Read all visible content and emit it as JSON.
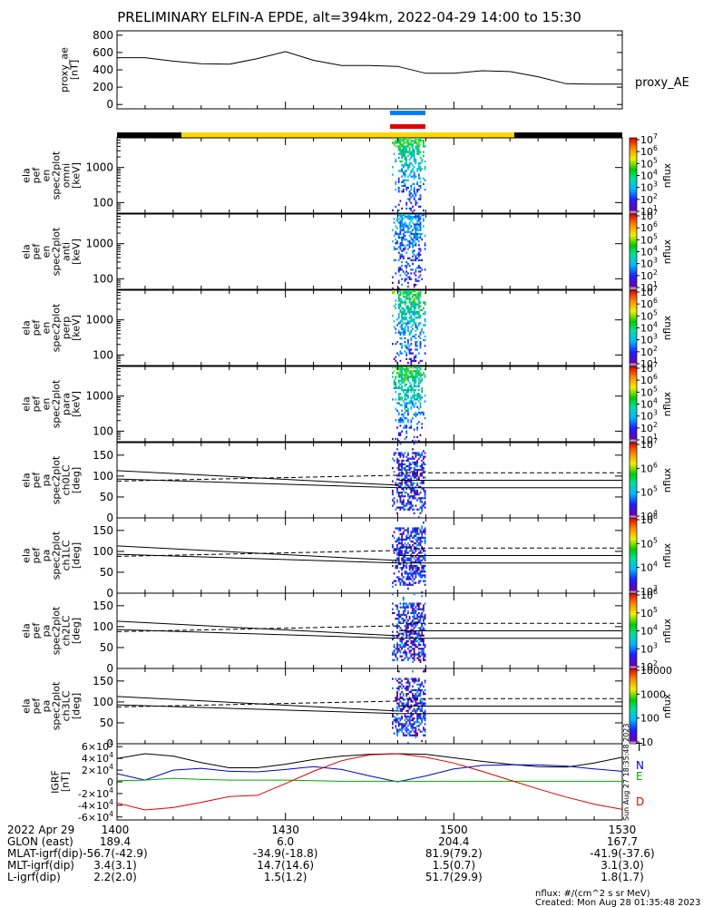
{
  "title": "PRELIMINARY ELFIN-A EPDE, alt=394km, 2022-04-29 14:00 to 15:30",
  "sidebar_stamp": "Sun Aug 27 18:35:48 2023",
  "footer": {
    "line1": "nflux: #/(cm^2 s sr MeV)",
    "line2": "Created: Mon Aug 28 01:35:48 2023"
  },
  "colors": {
    "science_bar": "#0080ff",
    "fast_bar": "#e00000",
    "mode_black": "#000000",
    "mode_yellow": "#ffd700",
    "igrf_t": "#000000",
    "igrf_n": "#0000cc",
    "igrf_e": "#00aa00",
    "igrf_d": "#dd0000"
  },
  "chart_data": [
    {
      "type": "line",
      "panel": "proxy_ae",
      "ylabel_lines": [
        "proxy_ae",
        "[nT]"
      ],
      "legend": "proxy_AE",
      "ylim": [
        -50,
        850
      ],
      "yticks": [
        "0",
        "200",
        "400",
        "600",
        "800"
      ],
      "x_minutes": [
        0,
        5,
        10,
        15,
        20,
        25,
        30,
        35,
        40,
        45,
        50,
        55,
        60,
        65,
        70,
        75,
        80,
        85,
        90
      ],
      "values": [
        540,
        540,
        500,
        470,
        465,
        530,
        610,
        510,
        450,
        450,
        440,
        360,
        360,
        390,
        380,
        320,
        240,
        235,
        235
      ]
    },
    {
      "type": "heatmap",
      "panel": "omni",
      "ylabel_lines": [
        "ela",
        "pef",
        "en",
        "spec2plot",
        "omni",
        "[keV]"
      ],
      "yscale": "log",
      "yticks": [
        "100",
        "1000"
      ],
      "colorbar_ticks": [
        "10^1",
        "10^2",
        "10^3",
        "10^4",
        "10^5",
        "10^6",
        "10^7"
      ],
      "colorbar_label": "nflux"
    },
    {
      "type": "heatmap",
      "panel": "anti",
      "ylabel_lines": [
        "ela",
        "pef",
        "en",
        "spec2plot",
        "anti",
        "[keV]"
      ],
      "yscale": "log",
      "yticks": [
        "100",
        "1000"
      ],
      "colorbar_ticks": [
        "10^1",
        "10^2",
        "10^3",
        "10^4",
        "10^5",
        "10^6",
        "10^7"
      ],
      "colorbar_label": "nflux"
    },
    {
      "type": "heatmap",
      "panel": "perp",
      "ylabel_lines": [
        "ela",
        "pef",
        "en",
        "spec2plot",
        "perp",
        "[keV]"
      ],
      "yscale": "log",
      "yticks": [
        "100",
        "1000"
      ],
      "colorbar_ticks": [
        "10^1",
        "10^2",
        "10^3",
        "10^4",
        "10^5",
        "10^6",
        "10^7"
      ],
      "colorbar_label": "nflux"
    },
    {
      "type": "heatmap",
      "panel": "para",
      "ylabel_lines": [
        "ela",
        "pef",
        "en",
        "spec2plot",
        "para",
        "[keV]"
      ],
      "yscale": "log",
      "yticks": [
        "100",
        "1000"
      ],
      "colorbar_ticks": [
        "10^1",
        "10^2",
        "10^3",
        "10^4",
        "10^5",
        "10^6",
        "10^7"
      ],
      "colorbar_label": "nflux"
    },
    {
      "type": "heatmap",
      "panel": "ch0LC",
      "ylabel_lines": [
        "ela",
        "pef",
        "pa",
        "spec2plot",
        "ch0LC",
        "[deg]"
      ],
      "ylim": [
        0,
        180
      ],
      "yticks": [
        "0",
        "50",
        "100",
        "150"
      ],
      "colorbar_ticks": [
        "10^4",
        "10^5",
        "10^6",
        "10^7"
      ],
      "colorbar_label": "nflux"
    },
    {
      "type": "heatmap",
      "panel": "ch1LC",
      "ylabel_lines": [
        "ela",
        "pef",
        "pa",
        "spec2plot",
        "ch1LC",
        "[deg]"
      ],
      "ylim": [
        0,
        180
      ],
      "yticks": [
        "0",
        "50",
        "100",
        "150"
      ],
      "colorbar_ticks": [
        "10^3",
        "10^4",
        "10^5",
        "10^6"
      ],
      "colorbar_label": "nflux"
    },
    {
      "type": "heatmap",
      "panel": "ch2LC",
      "ylabel_lines": [
        "ela",
        "pef",
        "pa",
        "spec2plot",
        "ch2LC",
        "[deg]"
      ],
      "ylim": [
        0,
        180
      ],
      "yticks": [
        "0",
        "50",
        "100",
        "150"
      ],
      "colorbar_ticks": [
        "10^2",
        "10^3",
        "10^4",
        "10^5",
        "10^6"
      ],
      "colorbar_label": "nflux"
    },
    {
      "type": "heatmap",
      "panel": "ch3LC",
      "ylabel_lines": [
        "ela",
        "pef",
        "pa",
        "spec2plot",
        "ch3LC",
        "[deg]"
      ],
      "ylim": [
        0,
        180
      ],
      "yticks": [
        "0",
        "50",
        "100",
        "150"
      ],
      "colorbar_ticks": [
        "10",
        "100",
        "1000",
        "10000"
      ],
      "colorbar_label": "nflux"
    },
    {
      "type": "line",
      "panel": "igrf",
      "ylabel_lines": [
        "IGRF",
        "[nT]"
      ],
      "ylim": [
        -65000,
        65000
      ],
      "yticks": [
        "6×10^4",
        "4×10^4",
        "2×10^4",
        "0",
        "-2×10^4",
        "-4×10^4",
        "-6×10^4"
      ],
      "x_minutes": [
        0,
        5,
        10,
        15,
        20,
        25,
        30,
        35,
        40,
        45,
        50,
        55,
        60,
        65,
        70,
        75,
        80,
        85,
        90
      ],
      "series": [
        {
          "name": "T",
          "values": [
            40000,
            48000,
            44000,
            33000,
            24000,
            24000,
            30000,
            38000,
            44000,
            47000,
            48000,
            47000,
            41000,
            35000,
            30000,
            26000,
            25000,
            32000,
            42000
          ]
        },
        {
          "name": "N",
          "values": [
            14000,
            3000,
            20000,
            23000,
            18000,
            17000,
            21000,
            26000,
            21000,
            10000,
            0,
            10000,
            22000,
            28000,
            29000,
            29000,
            27000,
            22000,
            18000
          ]
        },
        {
          "name": "E",
          "values": [
            2000,
            3000,
            6000,
            4000,
            3000,
            3000,
            3000,
            2000,
            1000,
            1000,
            1000,
            1000,
            1000,
            1000,
            1000,
            1000,
            1000,
            1000,
            1000
          ]
        },
        {
          "name": "D",
          "values": [
            -36000,
            -48000,
            -44000,
            -35000,
            -25000,
            -23000,
            -3000,
            18000,
            36000,
            46000,
            48000,
            42000,
            32000,
            18000,
            3000,
            -12000,
            -26000,
            -38000,
            -47000
          ]
        }
      ]
    }
  ],
  "x_axis": {
    "ticks": [
      "1400",
      "1430",
      "1500",
      "1530"
    ],
    "rows": [
      {
        "label": "2022 Apr 29",
        "values": [
          "1400",
          "1430",
          "1500",
          "1530"
        ]
      },
      {
        "label": "GLON (east)",
        "values": [
          "189.4",
          "6.0",
          "204.4",
          "167.7"
        ]
      },
      {
        "label": "MLAT-igrf(dip)",
        "values": "-56.7(-42.9)",
        "v2": [
          "-34.9(-18.8)",
          "81.9(79.2)",
          "-41.9(-37.6)"
        ]
      },
      {
        "label": "MLT-igrf(dip)",
        "values": "3.4(3.1)",
        "v2": [
          "14.7(14.6)",
          "1.5(0.7)",
          "3.1(3.0)"
        ]
      },
      {
        "label": "L-igrf(dip)",
        "values": "2.2(2.0)",
        "v2": [
          "1.5(1.2)",
          "51.7(29.9)",
          "1.8(1.7)"
        ]
      }
    ]
  }
}
